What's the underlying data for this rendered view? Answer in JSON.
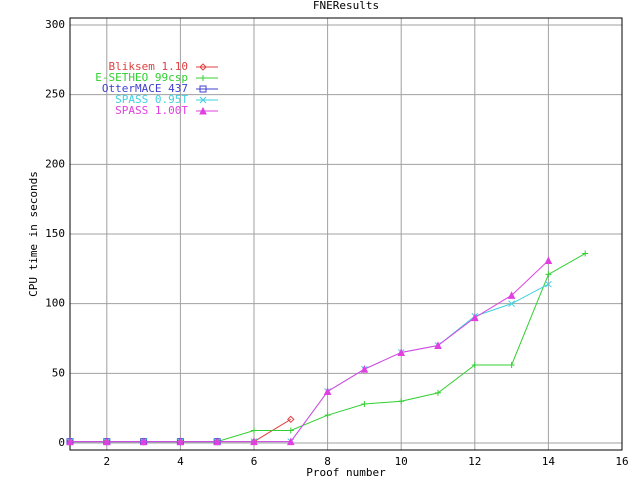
{
  "chart_data": {
    "type": "line",
    "title": "FNEResults",
    "x_label": "Proof number",
    "y_label": "CPU time in seconds",
    "x": [
      1,
      2,
      3,
      4,
      5,
      6,
      7,
      8,
      9,
      10,
      11,
      12,
      13,
      14,
      15
    ],
    "xlim": [
      1,
      16
    ],
    "xticks": [
      2,
      4,
      6,
      8,
      10,
      12,
      14,
      16
    ],
    "ylim": [
      -5,
      305
    ],
    "yticks": [
      0,
      50,
      100,
      150,
      200,
      250,
      300
    ],
    "grid": true,
    "legend": "upper-left",
    "series": [
      {
        "name": "Bliksem 1.10",
        "color": "#e04040",
        "marker": "diamond",
        "values": [
          1,
          1,
          1,
          1,
          1,
          1,
          17,
          null,
          null,
          null,
          null,
          null,
          null,
          null,
          null
        ]
      },
      {
        "name": "E-SETHEO 99csp",
        "color": "#30d030",
        "marker": "plus",
        "values": [
          1,
          1,
          1,
          1,
          1,
          9,
          9,
          20,
          28,
          30,
          36,
          56,
          56,
          121,
          136
        ]
      },
      {
        "name": "OtterMACE 437",
        "color": "#4040d0",
        "marker": "square",
        "values": [
          1,
          1,
          1,
          1,
          1,
          null,
          null,
          null,
          null,
          null,
          null,
          null,
          null,
          null,
          null
        ]
      },
      {
        "name": "SPASS 0.95T",
        "color": "#40d0e0",
        "marker": "cross",
        "values": [
          1,
          1,
          1,
          1,
          1,
          1,
          1,
          37,
          53,
          65,
          70,
          91,
          100,
          114,
          null
        ]
      },
      {
        "name": "SPASS 1.00T",
        "color": "#e040e0",
        "marker": "triangle",
        "values": [
          1,
          1,
          1,
          1,
          1,
          1,
          1,
          37,
          53,
          65,
          70,
          90,
          106,
          131,
          null
        ]
      }
    ]
  }
}
